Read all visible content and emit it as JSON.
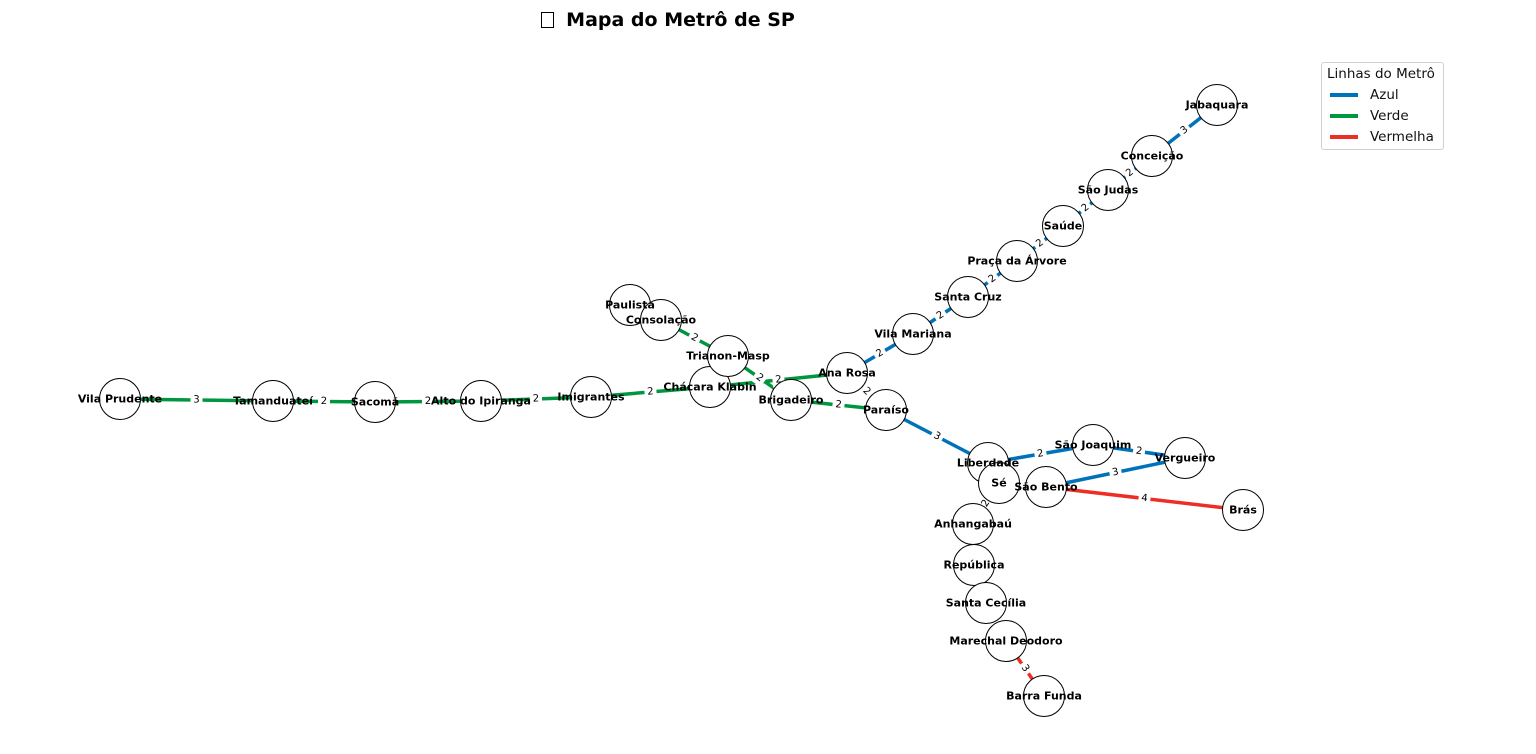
{
  "title": "Mapa do Metrô de SP",
  "title_icon": "missing-glyph-icon",
  "legend": {
    "title": "Linhas do Metrô",
    "items": [
      {
        "label": "Azul",
        "color": "#0072BA"
      },
      {
        "label": "Verde",
        "color": "#00963F"
      },
      {
        "label": "Vermelha",
        "color": "#EE2E24"
      }
    ]
  },
  "stations": [
    {
      "id": "vila-prudente",
      "name": "Vila Prudente"
    },
    {
      "id": "tamanduatei",
      "name": "Tamanduateí"
    },
    {
      "id": "sacoma",
      "name": "Sacomã"
    },
    {
      "id": "alto-do-ipiranga",
      "name": "Alto do Ipiranga"
    },
    {
      "id": "imigrantes",
      "name": "Imigrantes"
    },
    {
      "id": "chacara-klabin",
      "name": "Chácara Klabin"
    },
    {
      "id": "paulista",
      "name": "Paulista"
    },
    {
      "id": "consolacao",
      "name": "Consolação"
    },
    {
      "id": "trianon-masp",
      "name": "Trianon-Masp"
    },
    {
      "id": "brigadeiro",
      "name": "Brigadeiro"
    },
    {
      "id": "ana-rosa",
      "name": "Ana Rosa"
    },
    {
      "id": "paraiso",
      "name": "Paraíso"
    },
    {
      "id": "vila-mariana",
      "name": "Vila Mariana"
    },
    {
      "id": "santa-cruz",
      "name": "Santa Cruz"
    },
    {
      "id": "praca-da-arvore",
      "name": "Praça da Árvore"
    },
    {
      "id": "saude",
      "name": "Saúde"
    },
    {
      "id": "sao-judas",
      "name": "São Judas"
    },
    {
      "id": "conceicao",
      "name": "Conceição"
    },
    {
      "id": "jabaquara",
      "name": "Jabaquara"
    },
    {
      "id": "liberdade",
      "name": "Liberdade"
    },
    {
      "id": "se",
      "name": "Sé"
    },
    {
      "id": "sao-joaquim",
      "name": "São Joaquim"
    },
    {
      "id": "vergueiro",
      "name": "Vergueiro"
    },
    {
      "id": "sao-bento",
      "name": "São Bento"
    },
    {
      "id": "bras",
      "name": "Brás"
    },
    {
      "id": "anhangabau",
      "name": "Anhangabaú"
    },
    {
      "id": "republica",
      "name": "República"
    },
    {
      "id": "santa-cecilia",
      "name": "Santa Cecília"
    },
    {
      "id": "marechal-deodoro",
      "name": "Marechal Deodoro"
    },
    {
      "id": "barra-funda",
      "name": "Barra Funda"
    }
  ],
  "connections": [
    {
      "from": "vila-prudente",
      "to": "tamanduatei",
      "line": "Verde",
      "weight": "3"
    },
    {
      "from": "tamanduatei",
      "to": "sacoma",
      "line": "Verde",
      "weight": "2"
    },
    {
      "from": "sacoma",
      "to": "alto-do-ipiranga",
      "line": "Verde",
      "weight": "2"
    },
    {
      "from": "alto-do-ipiranga",
      "to": "imigrantes",
      "line": "Verde",
      "weight": "2"
    },
    {
      "from": "imigrantes",
      "to": "chacara-klabin",
      "line": "Verde",
      "weight": "2"
    },
    {
      "from": "chacara-klabin",
      "to": "ana-rosa",
      "line": "Verde",
      "weight": "2"
    },
    {
      "from": "consolacao",
      "to": "trianon-masp",
      "line": "Verde",
      "weight": "2"
    },
    {
      "from": "trianon-masp",
      "to": "brigadeiro",
      "line": "Verde",
      "weight": "2"
    },
    {
      "from": "brigadeiro",
      "to": "paraiso",
      "line": "Verde",
      "weight": "2"
    },
    {
      "from": "ana-rosa",
      "to": "paraiso",
      "line": "Azul",
      "weight": "2"
    },
    {
      "from": "ana-rosa",
      "to": "vila-mariana",
      "line": "Azul",
      "weight": "2"
    },
    {
      "from": "vila-mariana",
      "to": "santa-cruz",
      "line": "Azul",
      "weight": "2"
    },
    {
      "from": "santa-cruz",
      "to": "praca-da-arvore",
      "line": "Azul",
      "weight": "2"
    },
    {
      "from": "praca-da-arvore",
      "to": "saude",
      "line": "Azul",
      "weight": "2"
    },
    {
      "from": "saude",
      "to": "sao-judas",
      "line": "Azul",
      "weight": "2"
    },
    {
      "from": "sao-judas",
      "to": "conceicao",
      "line": "Azul",
      "weight": "2"
    },
    {
      "from": "conceicao",
      "to": "jabaquara",
      "line": "Azul",
      "weight": "3"
    },
    {
      "from": "paraiso",
      "to": "liberdade",
      "line": "Azul",
      "weight": "3"
    },
    {
      "from": "liberdade",
      "to": "sao-joaquim",
      "line": "Azul",
      "weight": "2"
    },
    {
      "from": "sao-joaquim",
      "to": "vergueiro",
      "line": "Azul",
      "weight": "2"
    },
    {
      "from": "vergueiro",
      "to": "sao-bento",
      "line": "Azul",
      "weight": "3"
    },
    {
      "from": "sao-bento",
      "to": "bras",
      "line": "Vermelha",
      "weight": "4"
    },
    {
      "from": "se",
      "to": "anhangabau",
      "line": "Vermelha",
      "weight": "2"
    },
    {
      "from": "marechal-deodoro",
      "to": "barra-funda",
      "line": "Vermelha",
      "weight": "3"
    }
  ]
}
